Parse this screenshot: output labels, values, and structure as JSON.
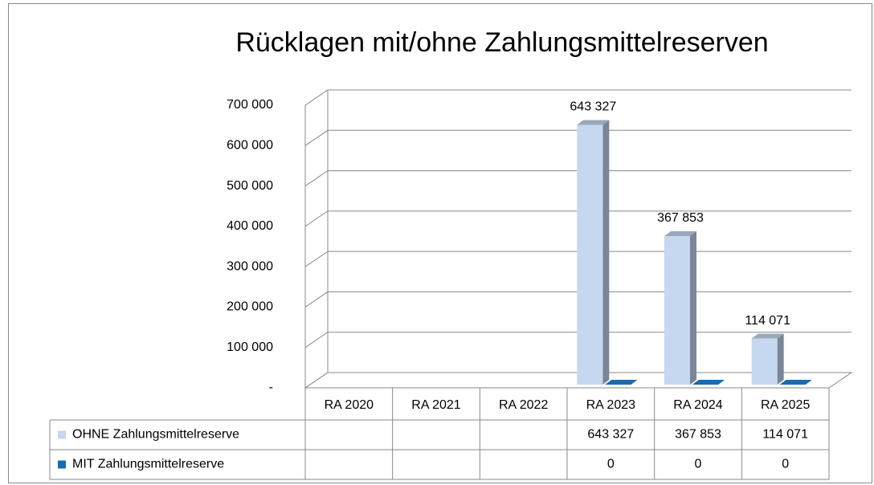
{
  "chart_data": {
    "type": "bar3d",
    "title": "Rücklagen mit/ohne Zahlungsmittelreserven",
    "categories": [
      "RA 2020",
      "RA 2021",
      "RA 2022",
      "RA 2023",
      "RA 2024",
      "RA 2025"
    ],
    "series": [
      {
        "name": "OHNE Zahlungsmittelreserve",
        "color": "#c5d8f0",
        "values": [
          null,
          null,
          null,
          643327,
          367853,
          114071
        ],
        "value_labels": [
          null,
          null,
          null,
          "643 327",
          "367 853",
          "114 071"
        ]
      },
      {
        "name": "MIT Zahlungsmittelreserve",
        "color": "#1a6bb0",
        "values": [
          null,
          null,
          null,
          0,
          0,
          0
        ]
      }
    ],
    "ylim": [
      0,
      700000
    ],
    "yticks": [
      {
        "value": 0,
        "label": "-"
      },
      {
        "value": 100000,
        "label": "100 000"
      },
      {
        "value": 200000,
        "label": "200 000"
      },
      {
        "value": 300000,
        "label": "300 000"
      },
      {
        "value": 400000,
        "label": "400 000"
      },
      {
        "value": 500000,
        "label": "500 000"
      },
      {
        "value": 600000,
        "label": "600 000"
      },
      {
        "value": 700000,
        "label": "700 000"
      }
    ],
    "grid": true,
    "data_table": true
  }
}
